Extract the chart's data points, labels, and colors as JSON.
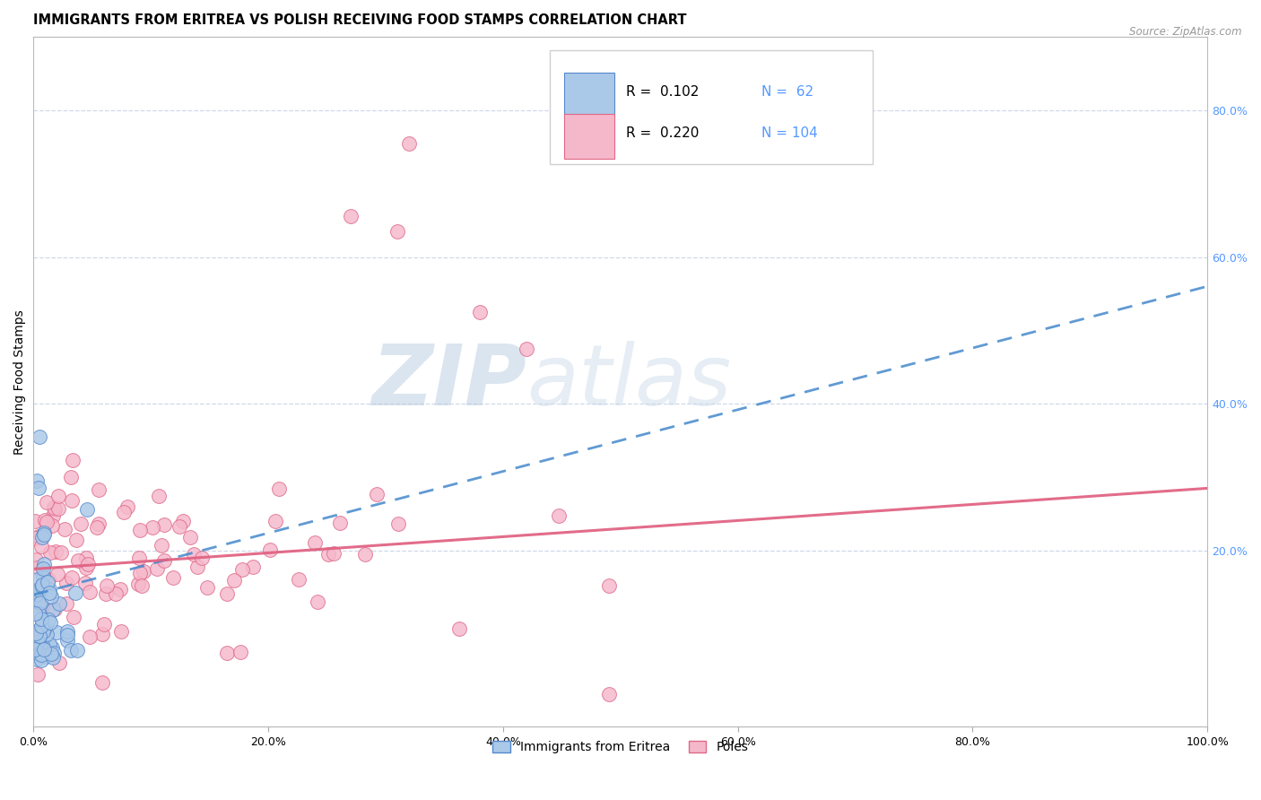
{
  "title": "IMMIGRANTS FROM ERITREA VS POLISH RECEIVING FOOD STAMPS CORRELATION CHART",
  "source": "Source: ZipAtlas.com",
  "ylabel": "Receiving Food Stamps",
  "xlim": [
    0,
    1.0
  ],
  "ylim": [
    -0.04,
    0.9
  ],
  "xticks": [
    0.0,
    0.2,
    0.4,
    0.6,
    0.8,
    1.0
  ],
  "xticklabels": [
    "0.0%",
    "20.0%",
    "40.0%",
    "60.0%",
    "80.0%",
    "100.0%"
  ],
  "yticks_right": [
    0.2,
    0.4,
    0.6,
    0.8
  ],
  "yticklabels_right": [
    "20.0%",
    "40.0%",
    "60.0%",
    "80.0%"
  ],
  "series1_name": "Immigrants from Eritrea",
  "series1_color": "#aac8e8",
  "series1_edge": "#5588cc",
  "series1_R": 0.102,
  "series1_N": 62,
  "series2_name": "Poles",
  "series2_color": "#f5b8cb",
  "series2_edge": "#e06888",
  "series2_R": 0.22,
  "series2_N": 104,
  "trend1_color": "#4488cc",
  "trend2_color": "#e06080",
  "trend1_start_y": 0.14,
  "trend1_end_y": 0.56,
  "trend2_start_y": 0.175,
  "trend2_end_y": 0.285,
  "watermark_zip": "ZIP",
  "watermark_atlas": "atlas",
  "background_color": "#ffffff",
  "grid_color": "#d0d8e8",
  "right_tick_color": "#5599ff",
  "title_fontsize": 10.5,
  "axis_label_fontsize": 10,
  "tick_fontsize": 9,
  "legend_fontsize": 11
}
